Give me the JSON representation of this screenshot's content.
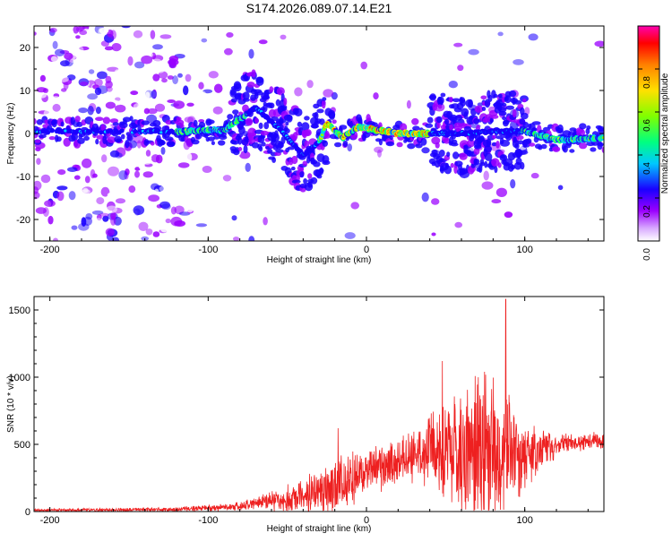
{
  "title": "S174.2026.089.07.14.E21",
  "chart_data": [
    {
      "type": "heatmap",
      "xlabel": "Height of straight line (km)",
      "ylabel": "Frequency (Hz)",
      "xlim": [
        -210,
        150
      ],
      "ylim": [
        -25,
        25
      ],
      "xticks": [
        -200,
        -100,
        0,
        100
      ],
      "yticks": [
        -20,
        -10,
        0,
        10,
        20
      ],
      "colorbar": {
        "label": "Normalized spectral amplitude",
        "range": [
          0,
          1
        ],
        "ticks": [
          "0.0",
          "0.2",
          "0.4",
          "0.6",
          "0.8"
        ],
        "colors": [
          "#ffffff",
          "#9b00ff",
          "#1a00ff",
          "#00c8ff",
          "#00ff80",
          "#80ff00",
          "#ffe000",
          "#ff8000",
          "#ff0000",
          "#ff00b0"
        ]
      },
      "ridge": [
        {
          "x": -210,
          "f": 0.5
        },
        {
          "x": -120,
          "f": 0.5
        },
        {
          "x": -90,
          "f": 0.8
        },
        {
          "x": -70,
          "f": 6
        },
        {
          "x": -55,
          "f": 1
        },
        {
          "x": -40,
          "f": -5
        },
        {
          "x": -30,
          "f": -2
        },
        {
          "x": -25,
          "f": 2.5
        },
        {
          "x": -15,
          "f": -1
        },
        {
          "x": -5,
          "f": 1.5
        },
        {
          "x": 20,
          "f": 0
        },
        {
          "x": 40,
          "f": 0
        },
        {
          "x": 60,
          "f": 0
        },
        {
          "x": 80,
          "f": 0.5
        },
        {
          "x": 100,
          "f": 0.5
        },
        {
          "x": 120,
          "f": -1.5
        },
        {
          "x": 150,
          "f": -1
        }
      ],
      "strong_segments": [
        {
          "x0": -120,
          "x1": -75
        },
        {
          "x0": -30,
          "x1": 40
        },
        {
          "x0": 98,
          "x1": 150
        }
      ]
    },
    {
      "type": "line",
      "xlabel": "Height of straight line (km)",
      "ylabel": "SNR (10 * v/v)",
      "xlim": [
        -210,
        150
      ],
      "ylim": [
        0,
        1600
      ],
      "xticks": [
        -200,
        -100,
        0,
        100
      ],
      "yticks": [
        0,
        500,
        1000,
        1500
      ],
      "color": "#ee2020",
      "envelope": [
        {
          "x": -210,
          "base": 10,
          "amp": 10
        },
        {
          "x": -120,
          "base": 15,
          "amp": 20
        },
        {
          "x": -80,
          "base": 40,
          "amp": 40
        },
        {
          "x": -60,
          "base": 80,
          "amp": 80
        },
        {
          "x": -40,
          "base": 120,
          "amp": 150
        },
        {
          "x": -20,
          "base": 180,
          "amp": 250
        },
        {
          "x": 0,
          "base": 300,
          "amp": 200
        },
        {
          "x": 20,
          "base": 380,
          "amp": 200
        },
        {
          "x": 40,
          "base": 450,
          "amp": 300
        },
        {
          "x": 60,
          "base": 450,
          "amp": 600
        },
        {
          "x": 80,
          "base": 450,
          "amp": 700
        },
        {
          "x": 100,
          "base": 430,
          "amp": 300
        },
        {
          "x": 120,
          "base": 500,
          "amp": 100
        },
        {
          "x": 150,
          "base": 520,
          "amp": 80
        }
      ],
      "peaks": [
        {
          "x": -18,
          "y": 620
        },
        {
          "x": 48,
          "y": 1120
        },
        {
          "x": 88,
          "y": 1580
        }
      ]
    }
  ]
}
